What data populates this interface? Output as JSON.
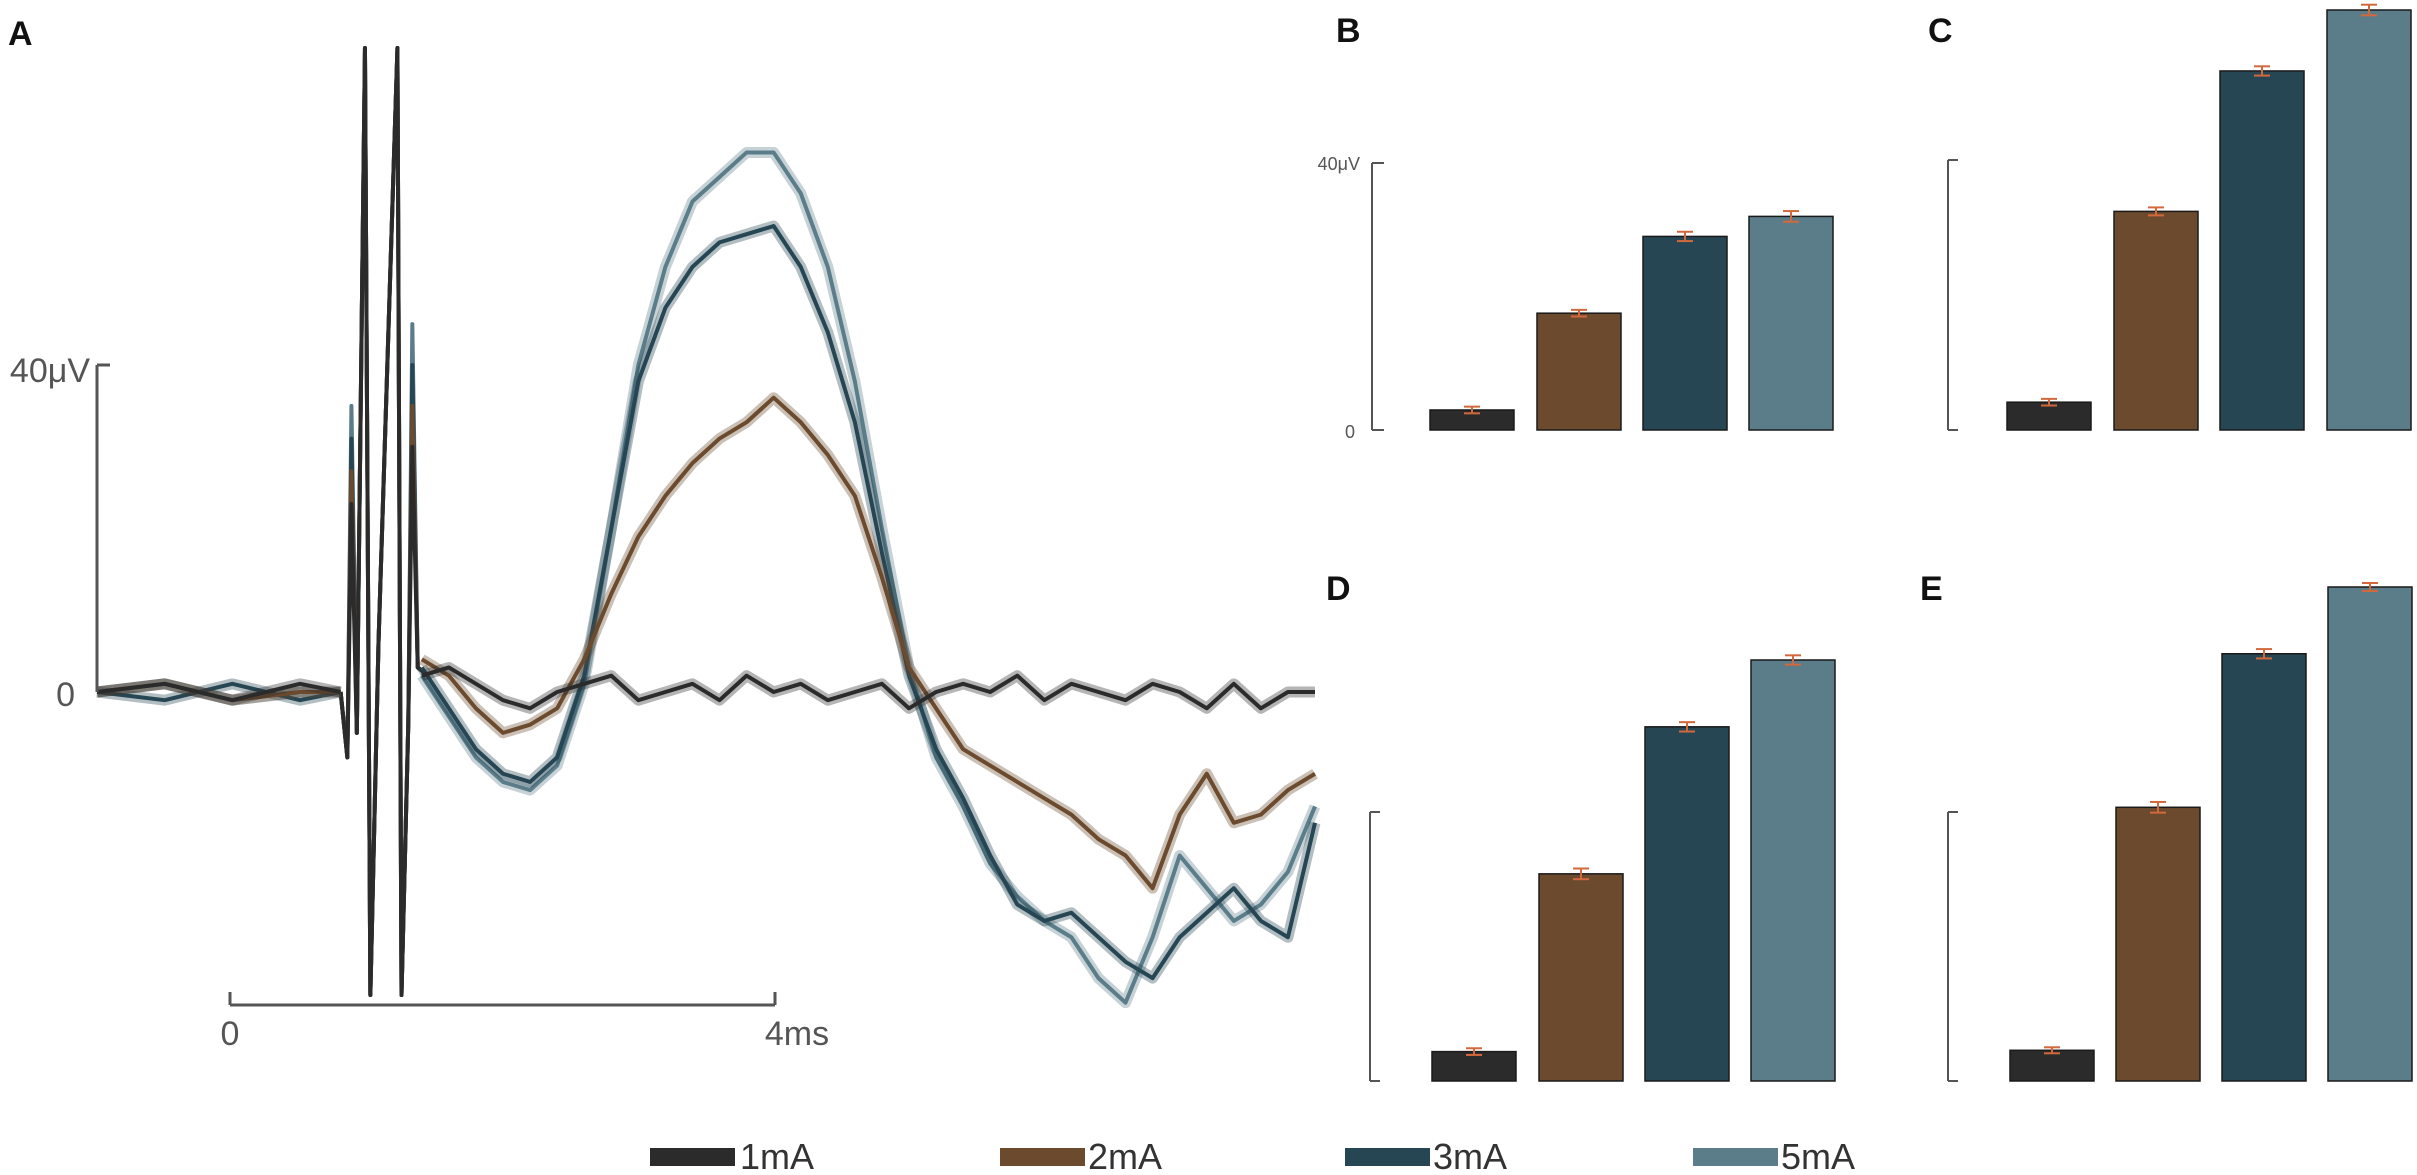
{
  "colors": {
    "1mA": "#2b2b2b",
    "2mA": "#6b4a2e",
    "3mA": "#264654",
    "5mA": "#5b7d89",
    "error": "#d2693c"
  },
  "legend": [
    "1mA",
    "2mA",
    "3mA",
    "5mA"
  ],
  "chart_data": [
    {
      "panel": "A",
      "type": "line",
      "title": "",
      "xlabel": "",
      "ylabel": "",
      "x_scale_bar": {
        "start_label": "0",
        "end_label": "4ms",
        "start": 0,
        "end": 4
      },
      "y_scale_bar": {
        "zero_label": "0",
        "top_label": "40μV",
        "min": 0,
        "max": 40
      },
      "xlim": [
        -1,
        8
      ],
      "ylim": [
        -40,
        80
      ],
      "stimulus_artifact_ms": [
        1.0,
        1.25
      ],
      "series": [
        {
          "name": "1mA",
          "x": [
            -1,
            -0.5,
            0,
            0.5,
            0.8,
            1.4,
            1.6,
            1.8,
            2,
            2.2,
            2.4,
            2.6,
            2.8,
            3,
            3.2,
            3.4,
            3.6,
            3.8,
            4,
            4.2,
            4.4,
            4.6,
            4.8,
            5,
            5.2,
            5.4,
            5.6,
            5.8,
            6,
            6.2,
            6.4,
            6.6,
            6.8,
            7,
            7.2,
            7.4,
            7.6,
            7.8,
            8
          ],
          "y": [
            0,
            1,
            -1,
            1,
            0,
            2,
            3,
            1,
            -1,
            -2,
            0,
            1,
            2,
            -1,
            0,
            1,
            -1,
            2,
            0,
            1,
            -1,
            0,
            1,
            -2,
            0,
            1,
            0,
            2,
            -1,
            1,
            0,
            -1,
            1,
            0,
            -2,
            1,
            -2,
            0,
            0
          ]
        },
        {
          "name": "2mA",
          "x": [
            -1,
            -0.5,
            0,
            0.5,
            0.8,
            1.4,
            1.6,
            1.8,
            2,
            2.2,
            2.4,
            2.6,
            2.8,
            3,
            3.2,
            3.4,
            3.6,
            3.8,
            4,
            4.2,
            4.4,
            4.6,
            4.8,
            5,
            5.2,
            5.4,
            5.6,
            5.8,
            6,
            6.2,
            6.4,
            6.6,
            6.8,
            7,
            7.2,
            7.4,
            7.6,
            7.8,
            8
          ],
          "y": [
            0,
            1,
            -1,
            0,
            0,
            4,
            2,
            -2,
            -5,
            -4,
            -2,
            4,
            12,
            19,
            24,
            28,
            31,
            33,
            36,
            33,
            29,
            24,
            14,
            3,
            -2,
            -7,
            -9,
            -11,
            -13,
            -15,
            -18,
            -20,
            -24,
            -15,
            -10,
            -16,
            -15,
            -12,
            -10
          ]
        },
        {
          "name": "3mA",
          "x": [
            -1,
            -0.5,
            0,
            0.5,
            0.8,
            1.4,
            1.6,
            1.8,
            2,
            2.2,
            2.4,
            2.6,
            2.8,
            3,
            3.2,
            3.4,
            3.6,
            3.8,
            4,
            4.2,
            4.4,
            4.6,
            4.8,
            5,
            5.2,
            5.4,
            5.6,
            5.8,
            6,
            6.2,
            6.4,
            6.6,
            6.8,
            7,
            7.2,
            7.4,
            7.6,
            7.8,
            8
          ],
          "y": [
            0,
            -1,
            1,
            -1,
            0,
            3,
            -2,
            -7,
            -10,
            -11,
            -8,
            2,
            20,
            38,
            47,
            52,
            55,
            56,
            57,
            52,
            44,
            33,
            17,
            2,
            -7,
            -13,
            -20,
            -26,
            -28,
            -27,
            -30,
            -33,
            -35,
            -30,
            -27,
            -24,
            -28,
            -30,
            -16
          ]
        },
        {
          "name": "5mA",
          "x": [
            -1,
            -0.5,
            0,
            0.5,
            0.8,
            1.4,
            1.6,
            1.8,
            2,
            2.2,
            2.4,
            2.6,
            2.8,
            3,
            3.2,
            3.4,
            3.6,
            3.8,
            4,
            4.2,
            4.4,
            4.6,
            4.8,
            5,
            5.2,
            5.4,
            5.6,
            5.8,
            6,
            6.2,
            6.4,
            6.6,
            6.8,
            7,
            7.2,
            7.4,
            7.6,
            7.8,
            8
          ],
          "y": [
            0,
            1,
            -1,
            0,
            0,
            2,
            -3,
            -8,
            -11,
            -12,
            -9,
            1,
            20,
            40,
            52,
            60,
            63,
            66,
            66,
            61,
            52,
            38,
            20,
            3,
            -8,
            -14,
            -21,
            -25,
            -28,
            -30,
            -35,
            -38,
            -30,
            -20,
            -24,
            -28,
            -26,
            -22,
            -14
          ]
        }
      ]
    },
    {
      "panel": "B",
      "type": "bar",
      "categories": [
        "1mA",
        "2mA",
        "3mA",
        "5mA"
      ],
      "values": [
        3,
        17.5,
        29,
        32
      ],
      "errors": [
        0.5,
        0.5,
        0.7,
        0.8
      ],
      "y_scale_bar": {
        "zero_label": "0",
        "top_label": "40μV",
        "min": 0,
        "max": 40
      },
      "ylim": [
        0,
        64
      ]
    },
    {
      "panel": "C",
      "type": "bar",
      "categories": [
        "1mA",
        "2mA",
        "3mA",
        "5mA"
      ],
      "values": [
        4.2,
        33,
        54.2,
        63.4
      ],
      "errors": [
        0.5,
        0.6,
        0.7,
        0.8
      ],
      "ylim": [
        0,
        64
      ]
    },
    {
      "panel": "D",
      "type": "bar",
      "categories": [
        "1mA",
        "2mA",
        "3mA",
        "5mA"
      ],
      "values": [
        4.4,
        31,
        53,
        63
      ],
      "errors": [
        0.5,
        0.8,
        0.7,
        0.7
      ],
      "ylim": [
        0,
        64
      ]
    },
    {
      "panel": "E",
      "type": "bar",
      "categories": [
        "1mA",
        "2mA",
        "3mA",
        "5mA"
      ],
      "values": [
        4.6,
        41,
        64,
        74
      ],
      "errors": [
        0.4,
        0.8,
        0.7,
        0.6
      ],
      "ylim": [
        0,
        75
      ]
    }
  ]
}
